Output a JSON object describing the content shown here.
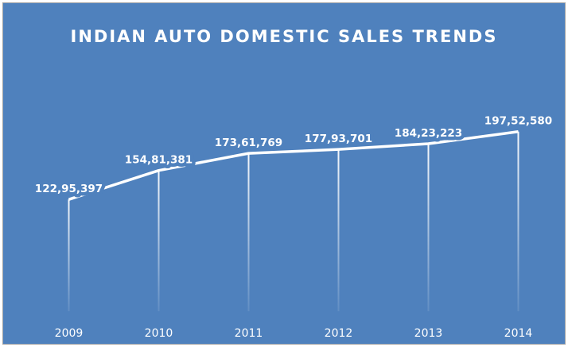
{
  "chart_data": {
    "type": "line",
    "title": "INDIAN AUTO DOMESTIC SALES TRENDS",
    "categories": [
      "2009",
      "2010",
      "2011",
      "2012",
      "2013",
      "2014"
    ],
    "series": [
      {
        "name": "Domestic Sales",
        "color": "#ffffff",
        "values": [
          12295397,
          15481381,
          17361769,
          17793701,
          18423223,
          19752580
        ],
        "value_labels": [
          "122,95,397",
          "154,81,381",
          "173,61,769",
          "177,93,701",
          "184,23,223",
          "197,52,580"
        ]
      }
    ],
    "ylim": [
      0,
      22000000
    ],
    "background": "#4f81bd"
  }
}
